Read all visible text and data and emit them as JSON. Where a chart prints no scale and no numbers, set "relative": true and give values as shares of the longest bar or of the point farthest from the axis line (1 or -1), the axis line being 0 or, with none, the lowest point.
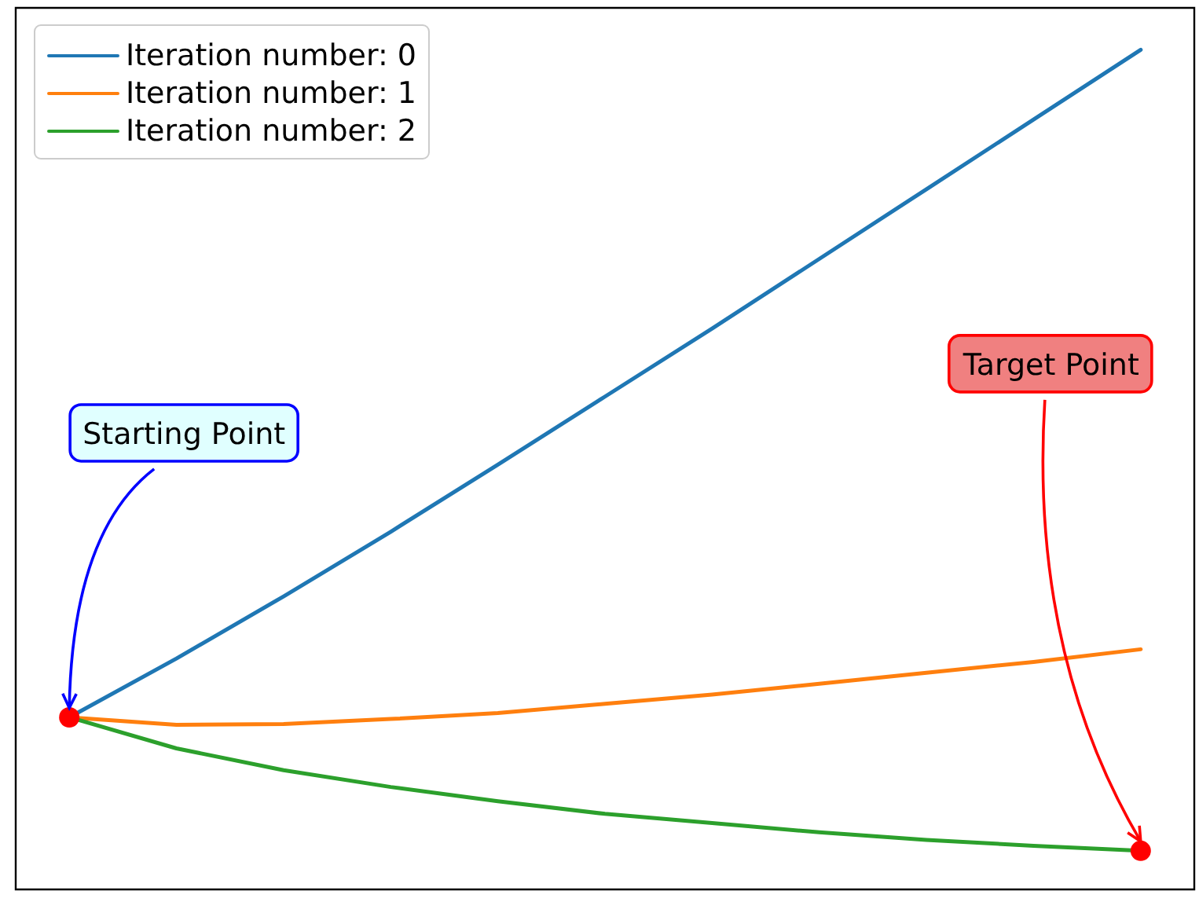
{
  "chart_data": {
    "type": "line",
    "relative": true,
    "categories": [
      null,
      null,
      null,
      null,
      null,
      null,
      null,
      null,
      null,
      null,
      null
    ],
    "series": [
      {
        "name": "Iteration number: 0",
        "color": "#1f77b4",
        "values": [
          0.205,
          0.275,
          0.349,
          0.426,
          0.506,
          0.587,
          0.668,
          0.751,
          0.834,
          0.917,
          1
        ]
      },
      {
        "name": "Iteration number: 1",
        "color": "#ff7f0e",
        "values": [
          0.205,
          0.196,
          0.197,
          0.203,
          0.21,
          0.221,
          0.232,
          0.245,
          0.258,
          0.271,
          0.286
        ]
      },
      {
        "name": "Iteration number: 2",
        "color": "#2ca02c",
        "values": [
          0.205,
          0.168,
          0.142,
          0.122,
          0.105,
          0.09,
          0.079,
          0.068,
          0.059,
          0.052,
          0.046
        ]
      }
    ],
    "annotations": [
      "Starting Point",
      "Target Point"
    ],
    "legend": "top left",
    "grid": false,
    "marker": "none",
    "line_style": "solid"
  }
}
